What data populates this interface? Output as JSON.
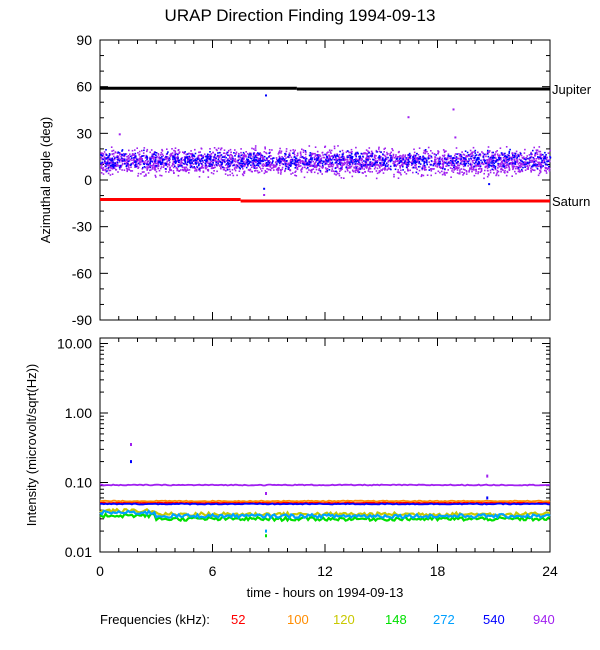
{
  "page": {
    "title": "URAP Direction Finding  1994-09-13",
    "xlabel": "time - hours on 1994-09-13",
    "legend_title": "Frequencies (kHz):"
  },
  "chart_data": [
    {
      "type": "scatter",
      "title": "URAP Direction Finding  1994-09-13",
      "xlabel": "",
      "ylabel": "Azimuthal angle (deg)",
      "xlim": [
        0,
        24
      ],
      "ylim": [
        -90,
        90
      ],
      "yticks": [
        90,
        60,
        30,
        0,
        -30,
        -60,
        -90
      ],
      "ytick_labels": [
        "90",
        "60",
        "30",
        "0",
        "-30",
        "-60",
        "-90"
      ],
      "reference_lines": [
        {
          "name": "Jupiter",
          "color": "#000000",
          "segments": [
            {
              "x": [
                0,
                10.5
              ],
              "y": 59
            },
            {
              "x": [
                10.5,
                24
              ],
              "y": 58.5
            }
          ]
        },
        {
          "name": "Saturn",
          "color": "#ff0000",
          "segments": [
            {
              "x": [
                0,
                7.5
              ],
              "y": -12.5
            },
            {
              "x": [
                7.5,
                24
              ],
              "y": -13.5
            }
          ]
        }
      ],
      "series": [
        {
          "color": "#a020f0",
          "x_range": [
            0,
            24
          ],
          "y_center": 12,
          "y_spread": 12
        },
        {
          "color": "#0000ff",
          "x_range": [
            0,
            24
          ],
          "y_center": 13,
          "y_spread": 8
        }
      ],
      "outliers": [
        {
          "x": 8.8,
          "y": 55,
          "color": "#0000ff"
        },
        {
          "x": 18.8,
          "y": 46,
          "color": "#a020f0"
        },
        {
          "x": 16.4,
          "y": 41,
          "color": "#a020f0"
        },
        {
          "x": 1.0,
          "y": 30,
          "color": "#a020f0"
        },
        {
          "x": 8.7,
          "y": -5,
          "color": "#0000ff"
        },
        {
          "x": 8.7,
          "y": -9,
          "color": "#a020f0"
        },
        {
          "x": 20.7,
          "y": -2,
          "color": "#0000ff"
        },
        {
          "x": 18.9,
          "y": 28,
          "color": "#a020f0"
        }
      ]
    },
    {
      "type": "line",
      "xlabel": "time - hours on 1994-09-13",
      "ylabel": "Intensity (microvolt/sqrt(Hz))",
      "yscale": "log",
      "xlim": [
        0,
        24
      ],
      "ylim": [
        0.01,
        12
      ],
      "xticks": [
        0,
        6,
        12,
        18,
        24
      ],
      "xtick_labels": [
        "0",
        "6",
        "12",
        "18",
        "24"
      ],
      "yticks": [
        10,
        1,
        0.1,
        0.01
      ],
      "ytick_labels": [
        "10.00",
        "1.00",
        "0.10",
        "0.01"
      ],
      "series": [
        {
          "name": "52",
          "color": "#ff0000",
          "level": 0.051
        },
        {
          "name": "100",
          "color": "#ff8c00",
          "level": 0.054
        },
        {
          "name": "120",
          "color": "#c8c800",
          "level": 0.035
        },
        {
          "name": "148",
          "color": "#00e000",
          "level": 0.03
        },
        {
          "name": "272",
          "color": "#00a0ff",
          "level": 0.033
        },
        {
          "name": "540",
          "color": "#0000ff",
          "level": 0.049
        },
        {
          "name": "940",
          "color": "#a020f0",
          "level": 0.092
        }
      ],
      "spikes": [
        {
          "x": 1.6,
          "y": 0.37,
          "color": "#a020f0"
        },
        {
          "x": 1.6,
          "y": 0.21,
          "color": "#0000ff"
        },
        {
          "x": 8.8,
          "y": 0.073,
          "color": "#a020f0"
        },
        {
          "x": 8.8,
          "y": 0.021,
          "color": "#00a0ff"
        },
        {
          "x": 8.8,
          "y": 0.018,
          "color": "#00e000"
        },
        {
          "x": 20.6,
          "y": 0.13,
          "color": "#a020f0"
        },
        {
          "x": 20.6,
          "y": 0.063,
          "color": "#0000ff"
        }
      ]
    }
  ]
}
